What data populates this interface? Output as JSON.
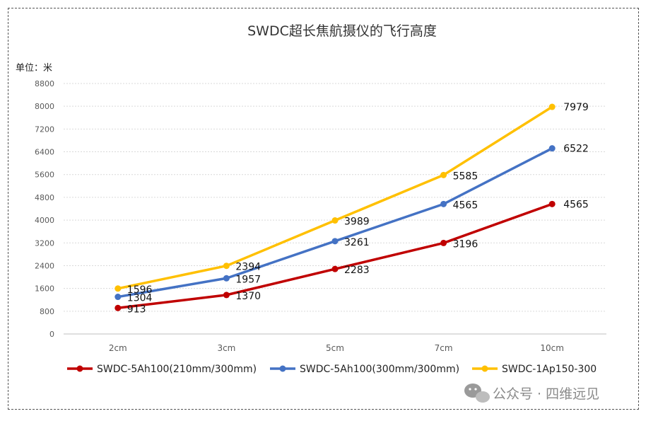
{
  "chart_data": {
    "type": "line",
    "title": "SWDC超长焦航摄仪的飞行高度",
    "unit_label": "单位：米",
    "categories": [
      "2cm",
      "3cm",
      "5cm",
      "7cm",
      "10cm"
    ],
    "yticks": [
      0,
      800,
      1600,
      2400,
      3200,
      4000,
      4800,
      5600,
      6400,
      7200,
      8000,
      8800
    ],
    "ylim": [
      0,
      8800
    ],
    "grid": true,
    "legend_position": "bottom",
    "series": [
      {
        "name": "SWDC-5Ah100(210mm/300mm)",
        "color": "#c00000",
        "values": [
          913,
          1370,
          2283,
          3196,
          4565
        ]
      },
      {
        "name": "SWDC-5Ah100(300mm/300mm)",
        "color": "#4472c4",
        "values": [
          1304,
          1957,
          3261,
          4565,
          6522
        ]
      },
      {
        "name": "SWDC-1Ap150-300",
        "color": "#ffc000",
        "values": [
          1596,
          2394,
          3989,
          5585,
          7979
        ]
      }
    ]
  },
  "watermark": {
    "text": "公众号 · 四维远见",
    "icon": "wechat-icon"
  }
}
